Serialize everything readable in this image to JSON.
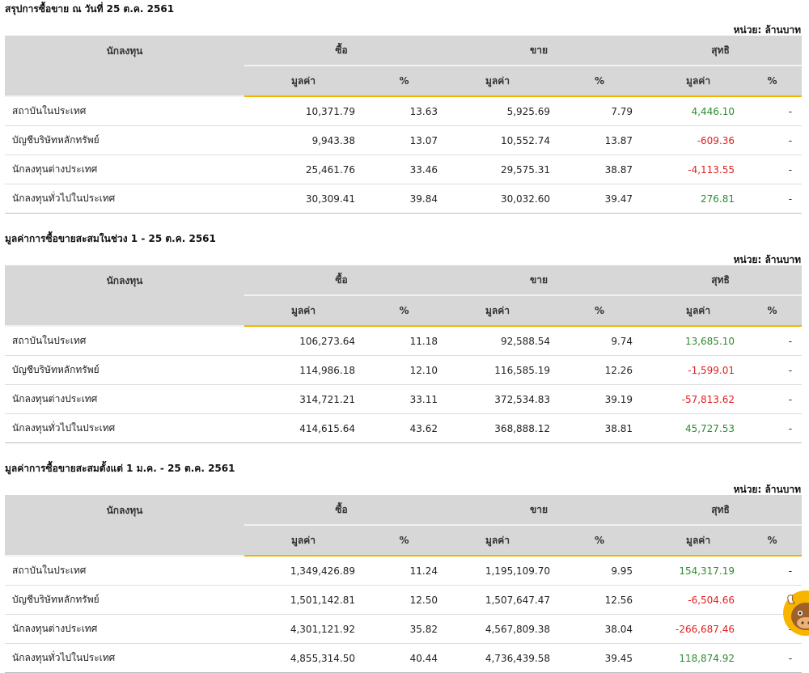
{
  "sections": [
    {
      "title": "สรุปการซื้อขาย ณ วันที่ 25 ต.ค. 2561",
      "unit": "หน่วย: ล้านบาท",
      "headers": {
        "investor": "นักลงทุน",
        "buy": "ซื้อ",
        "sell": "ขาย",
        "net": "สุทธิ",
        "value": "มูลค่า",
        "pct": "%"
      },
      "rows": [
        {
          "name": "สถาบันในประเทศ",
          "buy_value": "10,371.79",
          "buy_pct": "13.63",
          "sell_value": "5,925.69",
          "sell_pct": "7.79",
          "net_value": "4,446.10",
          "net_pct": "-"
        },
        {
          "name": "บัญชีบริษัทหลักทรัพย์",
          "buy_value": "9,943.38",
          "buy_pct": "13.07",
          "sell_value": "10,552.74",
          "sell_pct": "13.87",
          "net_value": "-609.36",
          "net_pct": "-"
        },
        {
          "name": "นักลงทุนต่างประเทศ",
          "buy_value": "25,461.76",
          "buy_pct": "33.46",
          "sell_value": "29,575.31",
          "sell_pct": "38.87",
          "net_value": "-4,113.55",
          "net_pct": "-"
        },
        {
          "name": "นักลงทุนทั่วไปในประเทศ",
          "buy_value": "30,309.41",
          "buy_pct": "39.84",
          "sell_value": "30,032.60",
          "sell_pct": "39.47",
          "net_value": "276.81",
          "net_pct": "-"
        }
      ]
    },
    {
      "title": "มูลค่าการซื้อขายสะสมในช่วง 1 - 25 ต.ค. 2561",
      "unit": "หน่วย: ล้านบาท",
      "headers": {
        "investor": "นักลงทุน",
        "buy": "ซื้อ",
        "sell": "ขาย",
        "net": "สุทธิ",
        "value": "มูลค่า",
        "pct": "%"
      },
      "rows": [
        {
          "name": "สถาบันในประเทศ",
          "buy_value": "106,273.64",
          "buy_pct": "11.18",
          "sell_value": "92,588.54",
          "sell_pct": "9.74",
          "net_value": "13,685.10",
          "net_pct": "-"
        },
        {
          "name": "บัญชีบริษัทหลักทรัพย์",
          "buy_value": "114,986.18",
          "buy_pct": "12.10",
          "sell_value": "116,585.19",
          "sell_pct": "12.26",
          "net_value": "-1,599.01",
          "net_pct": "-"
        },
        {
          "name": "นักลงทุนต่างประเทศ",
          "buy_value": "314,721.21",
          "buy_pct": "33.11",
          "sell_value": "372,534.83",
          "sell_pct": "39.19",
          "net_value": "-57,813.62",
          "net_pct": "-"
        },
        {
          "name": "นักลงทุนทั่วไปในประเทศ",
          "buy_value": "414,615.64",
          "buy_pct": "43.62",
          "sell_value": "368,888.12",
          "sell_pct": "38.81",
          "net_value": "45,727.53",
          "net_pct": "-"
        }
      ]
    },
    {
      "title": "มูลค่าการซื้อขายสะสมตั้งแต่ 1 ม.ค. - 25 ต.ค. 2561",
      "unit": "หน่วย: ล้านบาท",
      "headers": {
        "investor": "นักลงทุน",
        "buy": "ซื้อ",
        "sell": "ขาย",
        "net": "สุทธิ",
        "value": "มูลค่า",
        "pct": "%"
      },
      "rows": [
        {
          "name": "สถาบันในประเทศ",
          "buy_value": "1,349,426.89",
          "buy_pct": "11.24",
          "sell_value": "1,195,109.70",
          "sell_pct": "9.95",
          "net_value": "154,317.19",
          "net_pct": "-"
        },
        {
          "name": "บัญชีบริษัทหลักทรัพย์",
          "buy_value": "1,501,142.81",
          "buy_pct": "12.50",
          "sell_value": "1,507,647.47",
          "sell_pct": "12.56",
          "net_value": "-6,504.66",
          "net_pct": "-"
        },
        {
          "name": "นักลงทุนต่างประเทศ",
          "buy_value": "4,301,121.92",
          "buy_pct": "35.82",
          "sell_value": "4,567,809.38",
          "sell_pct": "38.04",
          "net_value": "-266,687.46",
          "net_pct": "-"
        },
        {
          "name": "นักลงทุนทั่วไปในประเทศ",
          "buy_value": "4,855,314.50",
          "buy_pct": "40.44",
          "sell_value": "4,736,439.58",
          "sell_pct": "39.45",
          "net_value": "118,874.92",
          "net_pct": "-"
        }
      ]
    }
  ],
  "colors": {
    "positive": "#2e8b2e",
    "negative": "#e02020",
    "accent": "#f5b300",
    "header_bg": "#d7d7d7"
  },
  "mascot": {
    "icon": "bull-mascot-icon"
  }
}
